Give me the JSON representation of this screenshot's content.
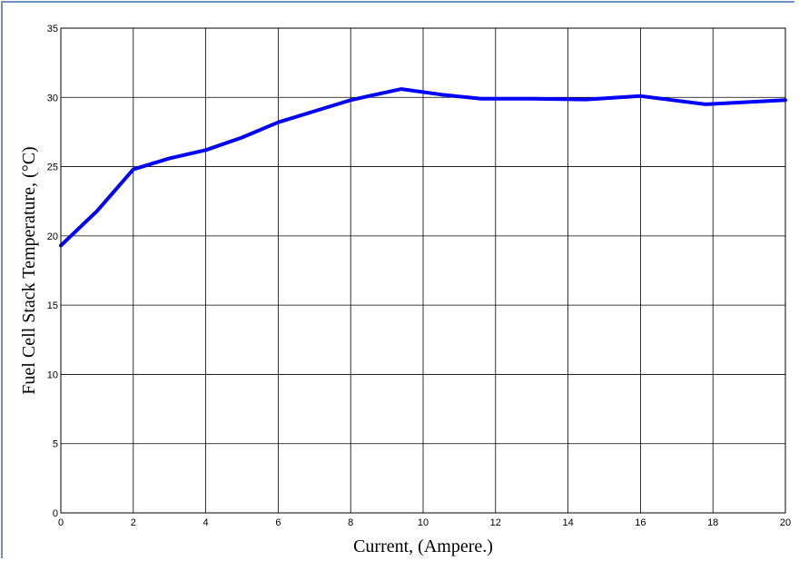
{
  "chart_data": {
    "type": "line",
    "title": "",
    "xlabel": "Current, (Ampere.)",
    "ylabel": "Fuel Cell Stack Temperature, (°C)",
    "xlim": [
      0,
      20
    ],
    "ylim": [
      0,
      35
    ],
    "xticks": [
      0,
      2,
      4,
      6,
      8,
      10,
      12,
      14,
      16,
      18,
      20
    ],
    "yticks": [
      0,
      5,
      10,
      15,
      20,
      25,
      30,
      35
    ],
    "grid": true,
    "series": [
      {
        "color": "#0000ff",
        "x": [
          0,
          1,
          2,
          3,
          4,
          5,
          6,
          7,
          8,
          8.5,
          9.4,
          10.5,
          11.6,
          13,
          14.5,
          16,
          17.8,
          20
        ],
        "y": [
          19.3,
          21.8,
          24.8,
          25.6,
          26.2,
          27.1,
          28.2,
          29.0,
          29.8,
          30.1,
          30.6,
          30.2,
          29.9,
          29.9,
          29.85,
          30.1,
          29.5,
          29.8
        ]
      }
    ]
  }
}
